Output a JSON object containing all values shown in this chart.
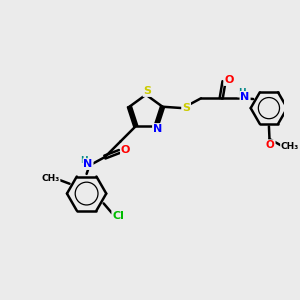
{
  "bg_color": "#ebebeb",
  "atom_colors": {
    "S": "#cccc00",
    "N": "#0000ff",
    "O": "#ff0000",
    "Cl": "#00bb00",
    "C": "#000000",
    "H": "#008888"
  },
  "bond_color": "#000000",
  "bond_width": 1.8,
  "fig_bg": "#ebebeb"
}
